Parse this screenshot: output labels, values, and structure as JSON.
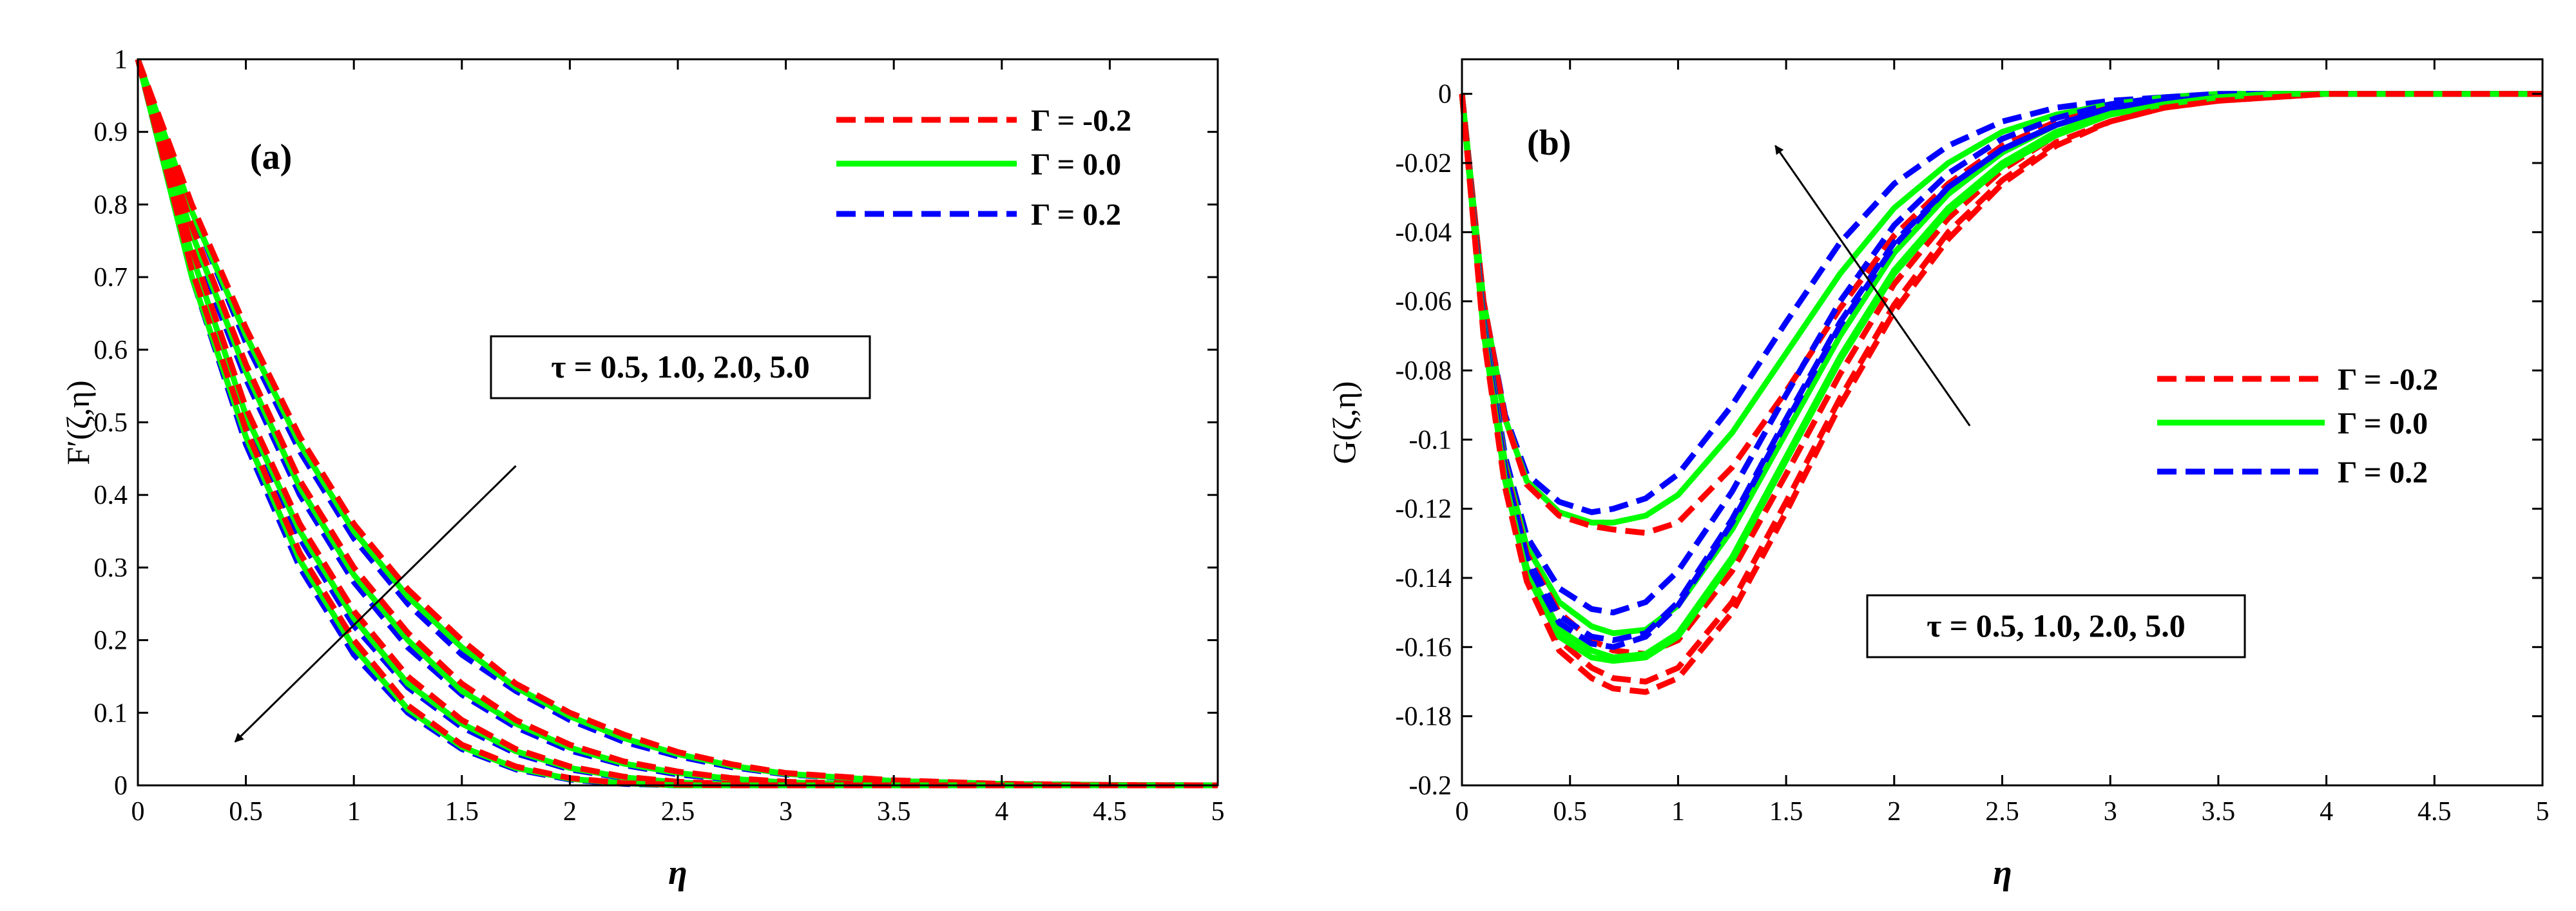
{
  "chart_data": [
    {
      "type": "line",
      "panel_label": "(a)",
      "xlabel": "η",
      "ylabel": "F′(ζ,η)",
      "xlim": [
        0,
        5
      ],
      "ylim": [
        0,
        1
      ],
      "xticks": [
        "0",
        "0.5",
        "1",
        "1.5",
        "2",
        "2.5",
        "3",
        "3.5",
        "4",
        "4.5",
        "5"
      ],
      "yticks": [
        "0",
        "0.1",
        "0.2",
        "0.3",
        "0.4",
        "0.5",
        "0.6",
        "0.7",
        "0.8",
        "0.9",
        "1"
      ],
      "legend": [
        {
          "label": "Γ = -0.2",
          "color": "#ff0000",
          "style": "dashed"
        },
        {
          "label": "Γ = 0.0",
          "color": "#00ff00",
          "style": "solid"
        },
        {
          "label": "Γ = 0.2",
          "color": "#0000ff",
          "style": "dashed"
        }
      ],
      "annotation": "τ = 0.5, 1.0, 2.0, 5.0",
      "annotation_arrow": {
        "from": [
          1.75,
          0.44
        ],
        "to": [
          0.45,
          0.06
        ]
      },
      "x": [
        0,
        0.25,
        0.5,
        0.75,
        1.0,
        1.25,
        1.5,
        1.75,
        2.0,
        2.25,
        2.5,
        2.75,
        3.0,
        3.5,
        4.0,
        4.5,
        5.0
      ],
      "series": [
        {
          "name": "Γ = 0.2, τ = 0.5",
          "color": "#0000ff",
          "style": "dashed",
          "values": [
            1,
            0.79,
            0.61,
            0.46,
            0.34,
            0.25,
            0.18,
            0.13,
            0.09,
            0.06,
            0.04,
            0.025,
            0.015,
            0.006,
            0.002,
            0.0005,
            0
          ]
        },
        {
          "name": "Γ = 0.0, τ = 0.5",
          "color": "#00ff00",
          "style": "solid",
          "values": [
            1,
            0.79,
            0.62,
            0.47,
            0.35,
            0.26,
            0.19,
            0.135,
            0.095,
            0.065,
            0.043,
            0.027,
            0.016,
            0.006,
            0.002,
            0.0005,
            0
          ]
        },
        {
          "name": "Γ = -0.2, τ = 0.5",
          "color": "#ff0000",
          "style": "dashed",
          "values": [
            1,
            0.8,
            0.63,
            0.48,
            0.36,
            0.27,
            0.2,
            0.14,
            0.1,
            0.07,
            0.046,
            0.029,
            0.017,
            0.007,
            0.002,
            0.0005,
            0
          ]
        },
        {
          "name": "Γ = 0.2, τ = 1.0",
          "color": "#0000ff",
          "style": "dashed",
          "values": [
            1,
            0.75,
            0.56,
            0.4,
            0.28,
            0.19,
            0.125,
            0.08,
            0.048,
            0.028,
            0.015,
            0.008,
            0.004,
            0.001,
            0,
            0,
            0
          ]
        },
        {
          "name": "Γ = 0.0, τ = 1.0",
          "color": "#00ff00",
          "style": "solid",
          "values": [
            1,
            0.76,
            0.57,
            0.41,
            0.29,
            0.2,
            0.13,
            0.085,
            0.052,
            0.03,
            0.017,
            0.009,
            0.004,
            0.001,
            0,
            0,
            0
          ]
        },
        {
          "name": "Γ = -0.2, τ = 1.0",
          "color": "#ff0000",
          "style": "dashed",
          "values": [
            1,
            0.77,
            0.58,
            0.42,
            0.3,
            0.21,
            0.14,
            0.09,
            0.056,
            0.033,
            0.019,
            0.01,
            0.005,
            0.001,
            0,
            0,
            0
          ]
        },
        {
          "name": "Γ = 0.2, τ = 2.0",
          "color": "#0000ff",
          "style": "dashed",
          "values": [
            1,
            0.72,
            0.5,
            0.34,
            0.22,
            0.135,
            0.08,
            0.044,
            0.022,
            0.01,
            0.004,
            0.001,
            0,
            0,
            0,
            0,
            0
          ]
        },
        {
          "name": "Γ = 0.0, τ = 2.0",
          "color": "#00ff00",
          "style": "solid",
          "values": [
            1,
            0.73,
            0.51,
            0.35,
            0.23,
            0.14,
            0.085,
            0.047,
            0.024,
            0.011,
            0.004,
            0.001,
            0,
            0,
            0,
            0,
            0
          ]
        },
        {
          "name": "Γ = -0.2, τ = 2.0",
          "color": "#ff0000",
          "style": "dashed",
          "values": [
            1,
            0.74,
            0.52,
            0.36,
            0.24,
            0.15,
            0.09,
            0.05,
            0.026,
            0.012,
            0.005,
            0.002,
            0,
            0,
            0,
            0,
            0
          ]
        },
        {
          "name": "Γ = 0.2, τ = 5.0",
          "color": "#0000ff",
          "style": "dashed",
          "values": [
            1,
            0.7,
            0.47,
            0.3,
            0.18,
            0.1,
            0.05,
            0.022,
            0.008,
            0.002,
            0,
            0,
            0,
            0,
            0,
            0,
            0
          ]
        },
        {
          "name": "Γ = 0.0, τ = 5.0",
          "color": "#00ff00",
          "style": "solid",
          "values": [
            1,
            0.7,
            0.48,
            0.31,
            0.19,
            0.105,
            0.053,
            0.024,
            0.009,
            0.003,
            0,
            0,
            0,
            0,
            0,
            0,
            0
          ]
        },
        {
          "name": "Γ = -0.2, τ = 5.0",
          "color": "#ff0000",
          "style": "dashed",
          "values": [
            1,
            0.71,
            0.49,
            0.32,
            0.2,
            0.11,
            0.056,
            0.026,
            0.01,
            0.003,
            0.001,
            0,
            0,
            0,
            0,
            0,
            0
          ]
        }
      ]
    },
    {
      "type": "line",
      "panel_label": "(b)",
      "xlabel": "η",
      "ylabel": "G(ζ,η)",
      "xlim": [
        0,
        5
      ],
      "ylim": [
        -0.2,
        0.01
      ],
      "xticks": [
        "0",
        "0.5",
        "1",
        "1.5",
        "2",
        "2.5",
        "3",
        "3.5",
        "4",
        "4.5",
        "5"
      ],
      "yticks": [
        "0",
        "-0.02",
        "-0.04",
        "-0.06",
        "-0.08",
        "-0.1",
        "-0.12",
        "-0.14",
        "-0.16",
        "-0.18",
        "-0.2"
      ],
      "legend": [
        {
          "label": "Γ = -0.2",
          "color": "#ff0000",
          "style": "dashed"
        },
        {
          "label": "Γ = 0.0",
          "color": "#00ff00",
          "style": "solid"
        },
        {
          "label": "Γ = 0.2",
          "color": "#0000ff",
          "style": "dashed"
        }
      ],
      "annotation": "τ = 0.5, 1.0, 2.0, 5.0",
      "annotation_arrow": {
        "from": [
          2.35,
          -0.096
        ],
        "to": [
          1.45,
          -0.015
        ]
      },
      "x": [
        0,
        0.1,
        0.2,
        0.3,
        0.45,
        0.6,
        0.7,
        0.85,
        1.0,
        1.25,
        1.5,
        1.75,
        2.0,
        2.25,
        2.5,
        2.75,
        3.0,
        3.25,
        3.5,
        3.75,
        4.0,
        4.5,
        5.0
      ],
      "series": [
        {
          "name": "Γ = 0.2, τ = 0.5",
          "color": "#0000ff",
          "style": "dashed",
          "values": [
            0,
            -0.06,
            -0.093,
            -0.11,
            -0.118,
            -0.121,
            -0.12,
            -0.117,
            -0.11,
            -0.09,
            -0.066,
            -0.043,
            -0.026,
            -0.015,
            -0.008,
            -0.004,
            -0.002,
            -0.001,
            0,
            0,
            0,
            0,
            0
          ]
        },
        {
          "name": "Γ = 0.0, τ = 0.5",
          "color": "#00ff00",
          "style": "solid",
          "values": [
            0,
            -0.06,
            -0.094,
            -0.112,
            -0.121,
            -0.124,
            -0.124,
            -0.122,
            -0.116,
            -0.098,
            -0.075,
            -0.052,
            -0.033,
            -0.02,
            -0.011,
            -0.006,
            -0.003,
            -0.001,
            0,
            0,
            0,
            0,
            0
          ]
        },
        {
          "name": "Γ = -0.2, τ = 0.5",
          "color": "#ff0000",
          "style": "dashed",
          "values": [
            0,
            -0.06,
            -0.094,
            -0.113,
            -0.122,
            -0.125,
            -0.126,
            -0.127,
            -0.124,
            -0.108,
            -0.086,
            -0.062,
            -0.041,
            -0.026,
            -0.015,
            -0.008,
            -0.004,
            -0.002,
            -0.001,
            0,
            0,
            0,
            0
          ]
        },
        {
          "name": "Γ = 0.2, τ = 1.0",
          "color": "#0000ff",
          "style": "dashed",
          "values": [
            0,
            -0.065,
            -0.105,
            -0.128,
            -0.143,
            -0.149,
            -0.15,
            -0.147,
            -0.138,
            -0.115,
            -0.087,
            -0.06,
            -0.038,
            -0.023,
            -0.013,
            -0.007,
            -0.003,
            -0.001,
            0,
            0,
            0,
            0,
            0
          ]
        },
        {
          "name": "Γ = 0.0, τ = 1.0",
          "color": "#00ff00",
          "style": "solid",
          "values": [
            0,
            -0.066,
            -0.107,
            -0.131,
            -0.147,
            -0.154,
            -0.156,
            -0.155,
            -0.148,
            -0.126,
            -0.098,
            -0.07,
            -0.046,
            -0.029,
            -0.017,
            -0.009,
            -0.005,
            -0.002,
            -0.001,
            0,
            0,
            0,
            0
          ]
        },
        {
          "name": "Γ = -0.2, τ = 1.0",
          "color": "#ff0000",
          "style": "dashed",
          "values": [
            0,
            -0.067,
            -0.108,
            -0.133,
            -0.15,
            -0.158,
            -0.161,
            -0.162,
            -0.158,
            -0.138,
            -0.11,
            -0.081,
            -0.055,
            -0.036,
            -0.022,
            -0.012,
            -0.006,
            -0.003,
            -0.001,
            0,
            0,
            0,
            0
          ]
        },
        {
          "name": "Γ = 0.2, τ = 2.0",
          "color": "#0000ff",
          "style": "dashed",
          "values": [
            0,
            -0.067,
            -0.109,
            -0.134,
            -0.151,
            -0.157,
            -0.158,
            -0.156,
            -0.147,
            -0.123,
            -0.094,
            -0.066,
            -0.043,
            -0.027,
            -0.016,
            -0.009,
            -0.004,
            -0.002,
            -0.001,
            0,
            0,
            0,
            0
          ]
        },
        {
          "name": "Γ = 0.0, τ = 2.0",
          "color": "#00ff00",
          "style": "solid",
          "values": [
            0,
            -0.068,
            -0.111,
            -0.137,
            -0.155,
            -0.161,
            -0.163,
            -0.162,
            -0.156,
            -0.134,
            -0.105,
            -0.076,
            -0.051,
            -0.033,
            -0.02,
            -0.011,
            -0.006,
            -0.003,
            -0.001,
            0,
            0,
            0,
            0
          ]
        },
        {
          "name": "Γ = -0.2, τ = 2.0",
          "color": "#ff0000",
          "style": "dashed",
          "values": [
            0,
            -0.069,
            -0.112,
            -0.139,
            -0.158,
            -0.166,
            -0.169,
            -0.17,
            -0.166,
            -0.147,
            -0.118,
            -0.088,
            -0.061,
            -0.04,
            -0.025,
            -0.014,
            -0.008,
            -0.004,
            -0.002,
            -0.001,
            0,
            0,
            0
          ]
        },
        {
          "name": "Γ = 0.2, τ = 5.0",
          "color": "#0000ff",
          "style": "dashed",
          "values": [
            0,
            -0.068,
            -0.11,
            -0.136,
            -0.153,
            -0.159,
            -0.16,
            -0.157,
            -0.148,
            -0.124,
            -0.095,
            -0.067,
            -0.044,
            -0.027,
            -0.016,
            -0.009,
            -0.004,
            -0.002,
            -0.001,
            0,
            0,
            0,
            0
          ]
        },
        {
          "name": "Γ = 0.0, τ = 5.0",
          "color": "#00ff00",
          "style": "solid",
          "values": [
            0,
            -0.069,
            -0.112,
            -0.139,
            -0.157,
            -0.163,
            -0.164,
            -0.163,
            -0.157,
            -0.135,
            -0.106,
            -0.077,
            -0.052,
            -0.034,
            -0.021,
            -0.012,
            -0.006,
            -0.003,
            -0.001,
            0,
            0,
            0,
            0
          ]
        },
        {
          "name": "Γ = -0.2, τ = 5.0",
          "color": "#ff0000",
          "style": "dashed",
          "values": [
            0,
            -0.07,
            -0.114,
            -0.141,
            -0.161,
            -0.169,
            -0.172,
            -0.173,
            -0.169,
            -0.15,
            -0.121,
            -0.09,
            -0.063,
            -0.042,
            -0.026,
            -0.015,
            -0.008,
            -0.004,
            -0.002,
            -0.001,
            0,
            0,
            0
          ]
        }
      ]
    }
  ]
}
